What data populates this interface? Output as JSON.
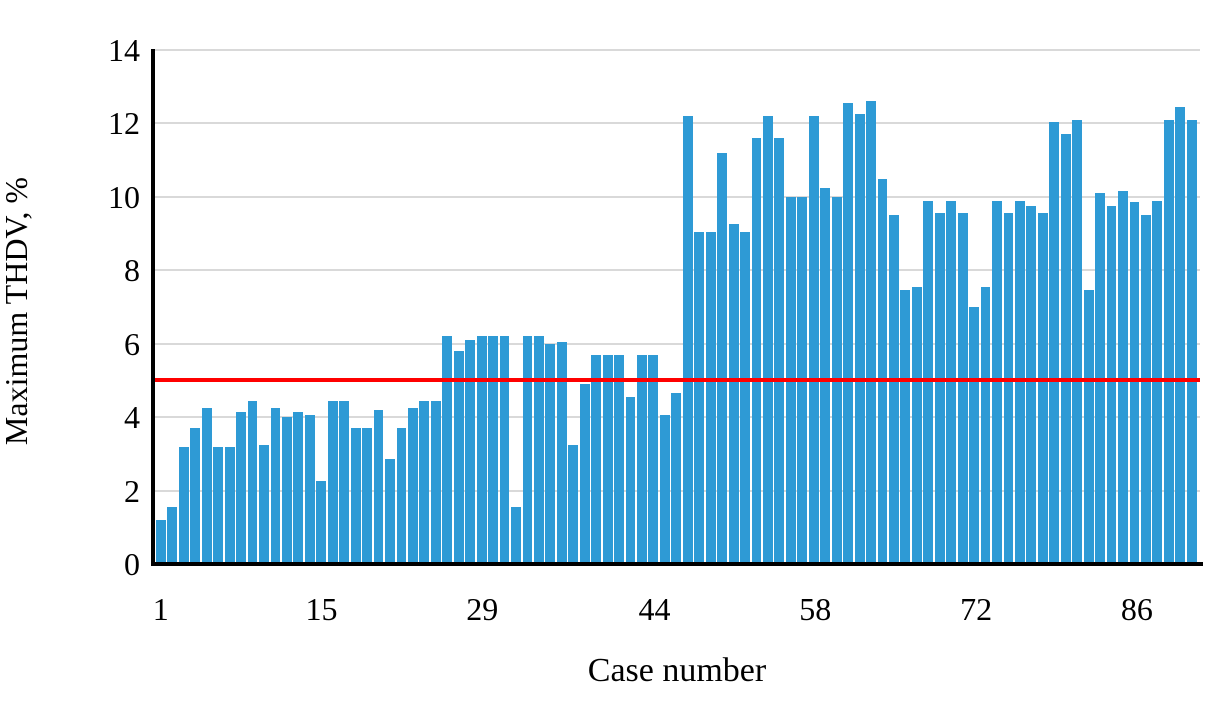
{
  "chart_data": {
    "type": "bar",
    "title": "",
    "xlabel": "Case number",
    "ylabel": "Maximum THDV, %",
    "ylim": [
      0,
      14
    ],
    "yticks": [
      0,
      2,
      4,
      6,
      8,
      10,
      12,
      14
    ],
    "xticks": [
      1,
      15,
      29,
      44,
      58,
      72,
      86
    ],
    "grid": true,
    "legend_position": "none",
    "bar_color": "#2e9ad5",
    "gridline_color": "#d9d9d9",
    "axis_color": "#000000",
    "threshold_line": {
      "value": 5,
      "color": "#ff0000"
    },
    "categories": [
      1,
      2,
      3,
      4,
      5,
      6,
      7,
      8,
      9,
      10,
      11,
      12,
      13,
      14,
      15,
      16,
      17,
      18,
      19,
      20,
      21,
      22,
      23,
      24,
      25,
      26,
      27,
      28,
      29,
      30,
      31,
      32,
      33,
      34,
      35,
      36,
      37,
      38,
      39,
      40,
      41,
      42,
      43,
      44,
      45,
      46,
      47,
      48,
      49,
      50,
      51,
      52,
      53,
      54,
      55,
      56,
      57,
      58,
      59,
      60,
      61,
      62,
      63,
      64,
      65,
      66,
      67,
      68,
      69,
      70,
      71,
      72,
      73,
      74,
      75,
      76,
      77,
      78,
      79,
      80,
      81,
      82,
      83,
      84,
      85,
      86,
      87,
      88,
      89,
      90,
      91
    ],
    "values": [
      1.2,
      1.55,
      3.2,
      3.7,
      4.25,
      3.2,
      3.2,
      4.15,
      4.45,
      3.25,
      4.25,
      4.0,
      4.15,
      4.05,
      2.25,
      4.45,
      4.45,
      3.7,
      3.7,
      4.2,
      2.85,
      3.7,
      4.25,
      4.45,
      4.45,
      6.2,
      5.8,
      6.1,
      6.2,
      6.2,
      6.2,
      1.55,
      6.2,
      6.2,
      6.0,
      6.05,
      3.25,
      4.9,
      5.7,
      5.7,
      5.7,
      4.55,
      5.7,
      5.7,
      4.05,
      4.65,
      12.2,
      9.05,
      9.05,
      11.2,
      9.25,
      9.05,
      11.6,
      12.2,
      11.6,
      10.0,
      10.0,
      12.2,
      10.25,
      10.0,
      12.55,
      12.25,
      12.6,
      10.5,
      9.5,
      7.45,
      7.55,
      9.9,
      9.55,
      9.9,
      9.55,
      7.0,
      7.55,
      9.9,
      9.55,
      9.9,
      9.75,
      9.55,
      12.05,
      11.7,
      12.1,
      7.45,
      10.1,
      9.75,
      10.15,
      9.85,
      9.5,
      9.9,
      12.1,
      12.45,
      12.1
    ]
  }
}
